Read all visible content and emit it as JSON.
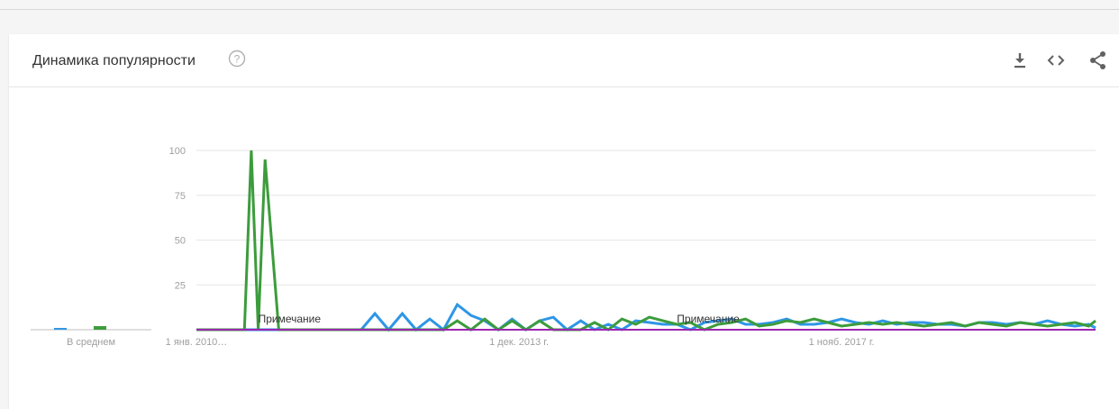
{
  "header": {
    "title": "Динамика популярности"
  },
  "icons": {
    "help": "help-circle-icon",
    "download": "download-icon",
    "embed": "code-embed-icon",
    "share": "share-icon"
  },
  "colors": {
    "series_blue": "#2e96e6",
    "series_green": "#3c9c3c",
    "baseline_purple": "#9c27b0",
    "grid": "#e6e6e6",
    "tick_text": "#9e9e9e"
  },
  "chart_data": {
    "type": "line",
    "ylim": [
      0,
      100
    ],
    "y_ticks": [
      25,
      50,
      75,
      100
    ],
    "x_tick_labels": [
      "1 янв. 2010…",
      "1 дек. 2013 г.",
      "1 нояб. 2017 г."
    ],
    "x_range": [
      "2010-01",
      "2020-12"
    ],
    "grid": true,
    "average_bar_label": "В среднем",
    "averages": [
      1,
      2
    ],
    "annotations": [
      {
        "text": "Примечание",
        "x": "2010-10"
      },
      {
        "text": "Примечание",
        "x": "2015-11"
      }
    ],
    "series": [
      {
        "color": "#2e96e6",
        "x": [
          "2010-01",
          "2012-01",
          "2012-03",
          "2012-05",
          "2012-07",
          "2012-09",
          "2012-11",
          "2013-01",
          "2013-03",
          "2013-05",
          "2013-07",
          "2013-09",
          "2013-11",
          "2014-01",
          "2014-03",
          "2014-05",
          "2014-07",
          "2014-09",
          "2014-11",
          "2015-01",
          "2015-03",
          "2015-05",
          "2015-07",
          "2015-09",
          "2015-11",
          "2016-01",
          "2016-03",
          "2016-05",
          "2016-07",
          "2016-09",
          "2016-11",
          "2017-01",
          "2017-03",
          "2017-05",
          "2017-07",
          "2017-09",
          "2017-11",
          "2018-01",
          "2018-03",
          "2018-05",
          "2018-07",
          "2018-09",
          "2018-11",
          "2019-01",
          "2019-03",
          "2019-05",
          "2019-07",
          "2019-09",
          "2019-11",
          "2020-01",
          "2020-03",
          "2020-05",
          "2020-07",
          "2020-09",
          "2020-11",
          "2020-12"
        ],
        "values": [
          0,
          0,
          9,
          0,
          9,
          0,
          6,
          0,
          14,
          8,
          5,
          0,
          6,
          0,
          5,
          7,
          0,
          5,
          0,
          3,
          0,
          5,
          4,
          3,
          3,
          0,
          4,
          5,
          6,
          3,
          3,
          4,
          6,
          3,
          3,
          4,
          6,
          4,
          3,
          5,
          3,
          4,
          4,
          3,
          3,
          2,
          4,
          4,
          3,
          4,
          3,
          5,
          3,
          2,
          3,
          1
        ]
      },
      {
        "color": "#3c9c3c",
        "x": [
          "2010-01",
          "2010-08",
          "2010-09",
          "2010-10",
          "2010-11",
          "2011-01",
          "2013-01",
          "2013-03",
          "2013-05",
          "2013-07",
          "2013-09",
          "2013-11",
          "2014-01",
          "2014-03",
          "2014-05",
          "2014-07",
          "2014-09",
          "2014-11",
          "2015-01",
          "2015-03",
          "2015-05",
          "2015-07",
          "2015-09",
          "2015-11",
          "2016-01",
          "2016-03",
          "2016-05",
          "2016-07",
          "2016-09",
          "2016-11",
          "2017-01",
          "2017-03",
          "2017-05",
          "2017-07",
          "2017-09",
          "2017-11",
          "2018-01",
          "2018-03",
          "2018-05",
          "2018-07",
          "2018-09",
          "2018-11",
          "2019-01",
          "2019-03",
          "2019-05",
          "2019-07",
          "2019-09",
          "2019-11",
          "2020-01",
          "2020-03",
          "2020-05",
          "2020-07",
          "2020-09",
          "2020-11",
          "2020-12"
        ],
        "values": [
          0,
          0,
          100,
          0,
          95,
          0,
          0,
          5,
          0,
          6,
          0,
          5,
          0,
          5,
          0,
          0,
          0,
          4,
          0,
          6,
          3,
          7,
          5,
          3,
          4,
          0,
          3,
          4,
          6,
          2,
          3,
          5,
          4,
          6,
          4,
          2,
          3,
          4,
          3,
          4,
          3,
          2,
          3,
          4,
          2,
          4,
          3,
          2,
          4,
          3,
          2,
          3,
          4,
          2,
          5
        ]
      }
    ]
  }
}
